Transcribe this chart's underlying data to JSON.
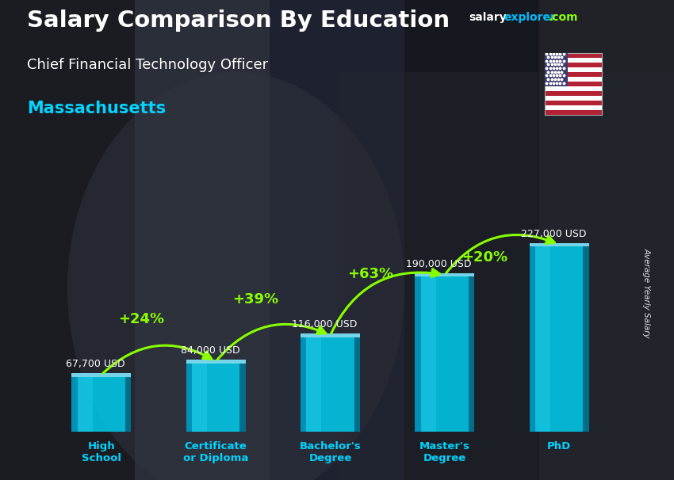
{
  "title_main": "Salary Comparison By Education",
  "title_sub": "Chief Financial Technology Officer",
  "title_location": "Massachusetts",
  "ylabel": "Average Yearly Salary",
  "categories": [
    "High\nSchool",
    "Certificate\nor Diploma",
    "Bachelor's\nDegree",
    "Master's\nDegree",
    "PhD"
  ],
  "values": [
    67700,
    84000,
    116000,
    190000,
    227000
  ],
  "value_labels": [
    "67,700 USD",
    "84,000 USD",
    "116,000 USD",
    "190,000 USD",
    "227,000 USD"
  ],
  "pct_labels": [
    "+24%",
    "+39%",
    "+63%",
    "+20%"
  ],
  "bar_face": "#00C8E8",
  "bar_left": "#008FB5",
  "bar_right": "#006A88",
  "bar_top": "#80E8FF",
  "bar_width": 0.52,
  "title_color": "#FFFFFF",
  "subtitle_color": "#FFFFFF",
  "location_color": "#00D4FF",
  "value_label_color": "#FFFFFF",
  "pct_color": "#88FF00",
  "arrow_color": "#88FF00",
  "bg_dark": "#1A1A28",
  "bg_mid": "#2A2A3A"
}
